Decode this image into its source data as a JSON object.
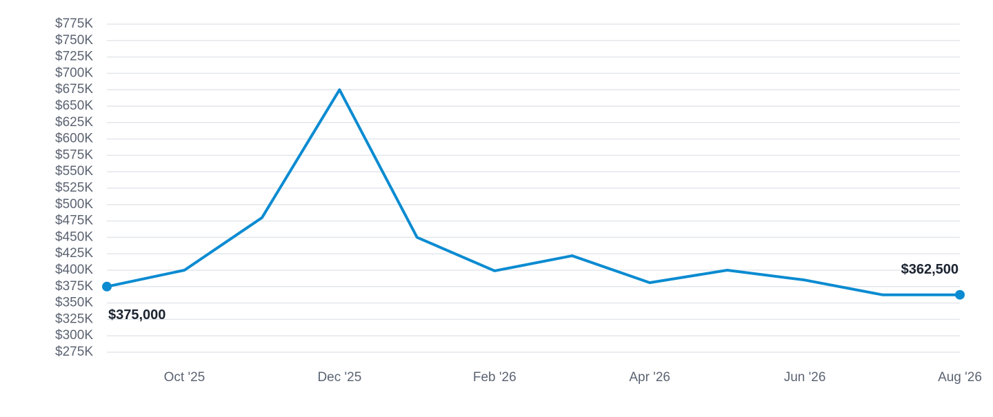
{
  "chart_data": {
    "type": "line",
    "categories": [
      null,
      "Oct '25",
      null,
      "Dec '25",
      null,
      "Feb '26",
      null,
      "Apr '26",
      null,
      "Jun '26",
      null,
      "Aug '26"
    ],
    "values": [
      375000,
      400000,
      480000,
      675000,
      450000,
      399000,
      422000,
      381000,
      400000,
      385000,
      362500,
      362500
    ],
    "value_labels": [
      "$375,000",
      null,
      null,
      null,
      null,
      null,
      null,
      null,
      null,
      null,
      null,
      "$362,500"
    ],
    "color": "#0b8bd1",
    "ylim": [
      275000,
      775000
    ],
    "yticks": [
      {
        "value": 275000,
        "label": "$275K"
      },
      {
        "value": 300000,
        "label": "$300K"
      },
      {
        "value": 325000,
        "label": "$325K"
      },
      {
        "value": 350000,
        "label": "$350K"
      },
      {
        "value": 375000,
        "label": "$375K"
      },
      {
        "value": 400000,
        "label": "$400K"
      },
      {
        "value": 425000,
        "label": "$425K"
      },
      {
        "value": 450000,
        "label": "$450K"
      },
      {
        "value": 475000,
        "label": "$475K"
      },
      {
        "value": 500000,
        "label": "$500K"
      },
      {
        "value": 525000,
        "label": "$525K"
      },
      {
        "value": 550000,
        "label": "$550K"
      },
      {
        "value": 575000,
        "label": "$575K"
      },
      {
        "value": 600000,
        "label": "$600K"
      },
      {
        "value": 625000,
        "label": "$625K"
      },
      {
        "value": 650000,
        "label": "$650K"
      },
      {
        "value": 675000,
        "label": "$675K"
      },
      {
        "value": 700000,
        "label": "$700K"
      },
      {
        "value": 725000,
        "label": "$725K"
      },
      {
        "value": 750000,
        "label": "$750K"
      },
      {
        "value": 775000,
        "label": "$775K"
      }
    ],
    "grid": true
  }
}
